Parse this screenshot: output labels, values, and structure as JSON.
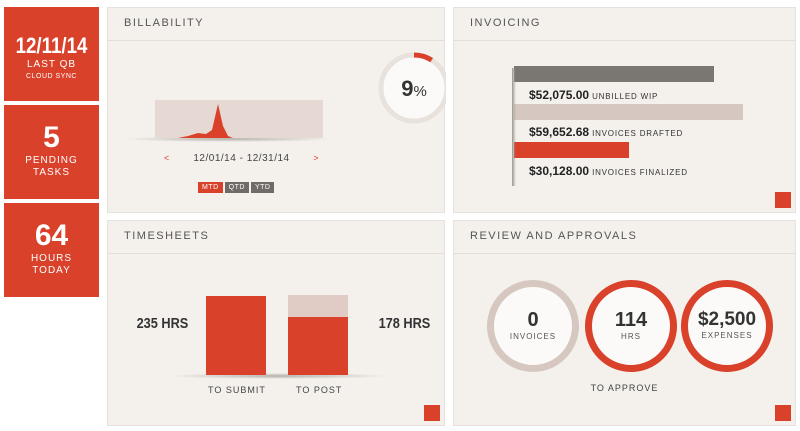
{
  "tiles": {
    "sync": {
      "value": "12/11/14",
      "line1": "LAST QB",
      "line2": "CLOUD SYNC"
    },
    "tasks": {
      "value": "5",
      "line1": "PENDING",
      "line2": "TASKS"
    },
    "hours": {
      "value": "64",
      "line1": "HOURS",
      "line2": "TODAY"
    }
  },
  "billability": {
    "title": "BILLABILITY",
    "percent": "9",
    "percent_symbol": "%",
    "percent_value": 0.09,
    "date_range": "12/01/14 - 12/31/14",
    "prev": "<",
    "next": ">",
    "buttons": {
      "mtd": "MTD",
      "qtd": "QTD",
      "ytd": "YTD"
    }
  },
  "invoicing": {
    "title": "INVOICING",
    "rows": [
      {
        "amount": "$52,075.00",
        "desc": "UNBILLED WIP",
        "value": 52075,
        "color": "#7a7672"
      },
      {
        "amount": "$59,652.68",
        "desc": "INVOICES DRAFTED",
        "value": 59652.68,
        "color": "#d6c8c0"
      },
      {
        "amount": "$30,128.00",
        "desc": "INVOICES FINALIZED",
        "value": 30128,
        "color": "#d9412a"
      }
    ]
  },
  "timesheets": {
    "title": "TIMESHEETS",
    "left_hours": "235 HRS",
    "right_hours": "178 HRS",
    "submit_label": "TO SUBMIT",
    "post_label": "TO POST"
  },
  "review": {
    "title": "REVIEW AND APPROVALS",
    "invoices_value": "0",
    "invoices_label": "INVOICES",
    "hrs_value": "114",
    "hrs_label": "HRS",
    "expenses_value": "$2,500",
    "expenses_label": "EXPENSES",
    "approve_label": "TO APPROVE"
  },
  "colors": {
    "accent": "#d9412a",
    "panel": "#f4f1ed",
    "muted": "#d6c8c0",
    "gray": "#7a7672"
  }
}
